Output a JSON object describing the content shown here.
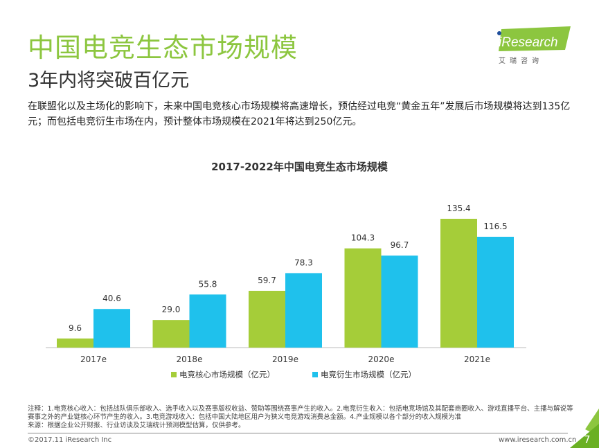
{
  "header": {
    "title": "中国电竞生态市场规模",
    "subtitle": "3年内将突破百亿元",
    "description": "在联盟化以及主场化的影响下，未来中国电竞核心市场规模将高速增长，预估经过电竞“黄金五年”发展后市场规模将达到135亿元；而包括电竞衍生市场在内，预计整体市场规模在2021年将达到250亿元。"
  },
  "logo": {
    "brand": "iResearch",
    "cn": "艾 瑞 咨 询"
  },
  "chart_data": {
    "type": "bar",
    "title": "2017-2022年中国电竞生态市场规模",
    "categories": [
      "2017e",
      "2018e",
      "2019e",
      "2020e",
      "2021e"
    ],
    "series": [
      {
        "name": "电竞核心市场规模（亿元）",
        "values": [
          9.6,
          29.0,
          59.7,
          104.3,
          135.4
        ],
        "color": "#a5cd39",
        "labels": [
          "9.6",
          "29.0",
          "59.7",
          "104.3",
          "135.4"
        ]
      },
      {
        "name": "电竞衍生市场规模（亿元）",
        "values": [
          40.6,
          55.8,
          78.3,
          96.7,
          116.5
        ],
        "color": "#1fc1ec",
        "labels": [
          "40.6",
          "55.8",
          "78.3",
          "96.7",
          "116.5"
        ]
      }
    ],
    "legend": "bottom",
    "grid": false
  },
  "footer": {
    "notes": "注释：1.电竞核心收入：包括战队俱乐部收入、选手收入以及赛事版权收益、赞助等围绕赛事产生的收入。2.电竞衍生收入：包括电竞场馆及其配套商圈收入、游戏直播平台、主播与解说等赛事之外的产业链核心环节产生的收入。3.电竞游戏收入：包括中国大陆地区用户为狭义电竞游戏消费总金额。4.产业规模以各个部分的收入规模为准",
    "source": "来源：根据企业公开财报、行业访谈及艾瑞统计预测模型估算，仅供参考。",
    "copyright": "©2017.11 iResearch Inc",
    "website": "www.iresearch.com.cn",
    "page": "7"
  }
}
